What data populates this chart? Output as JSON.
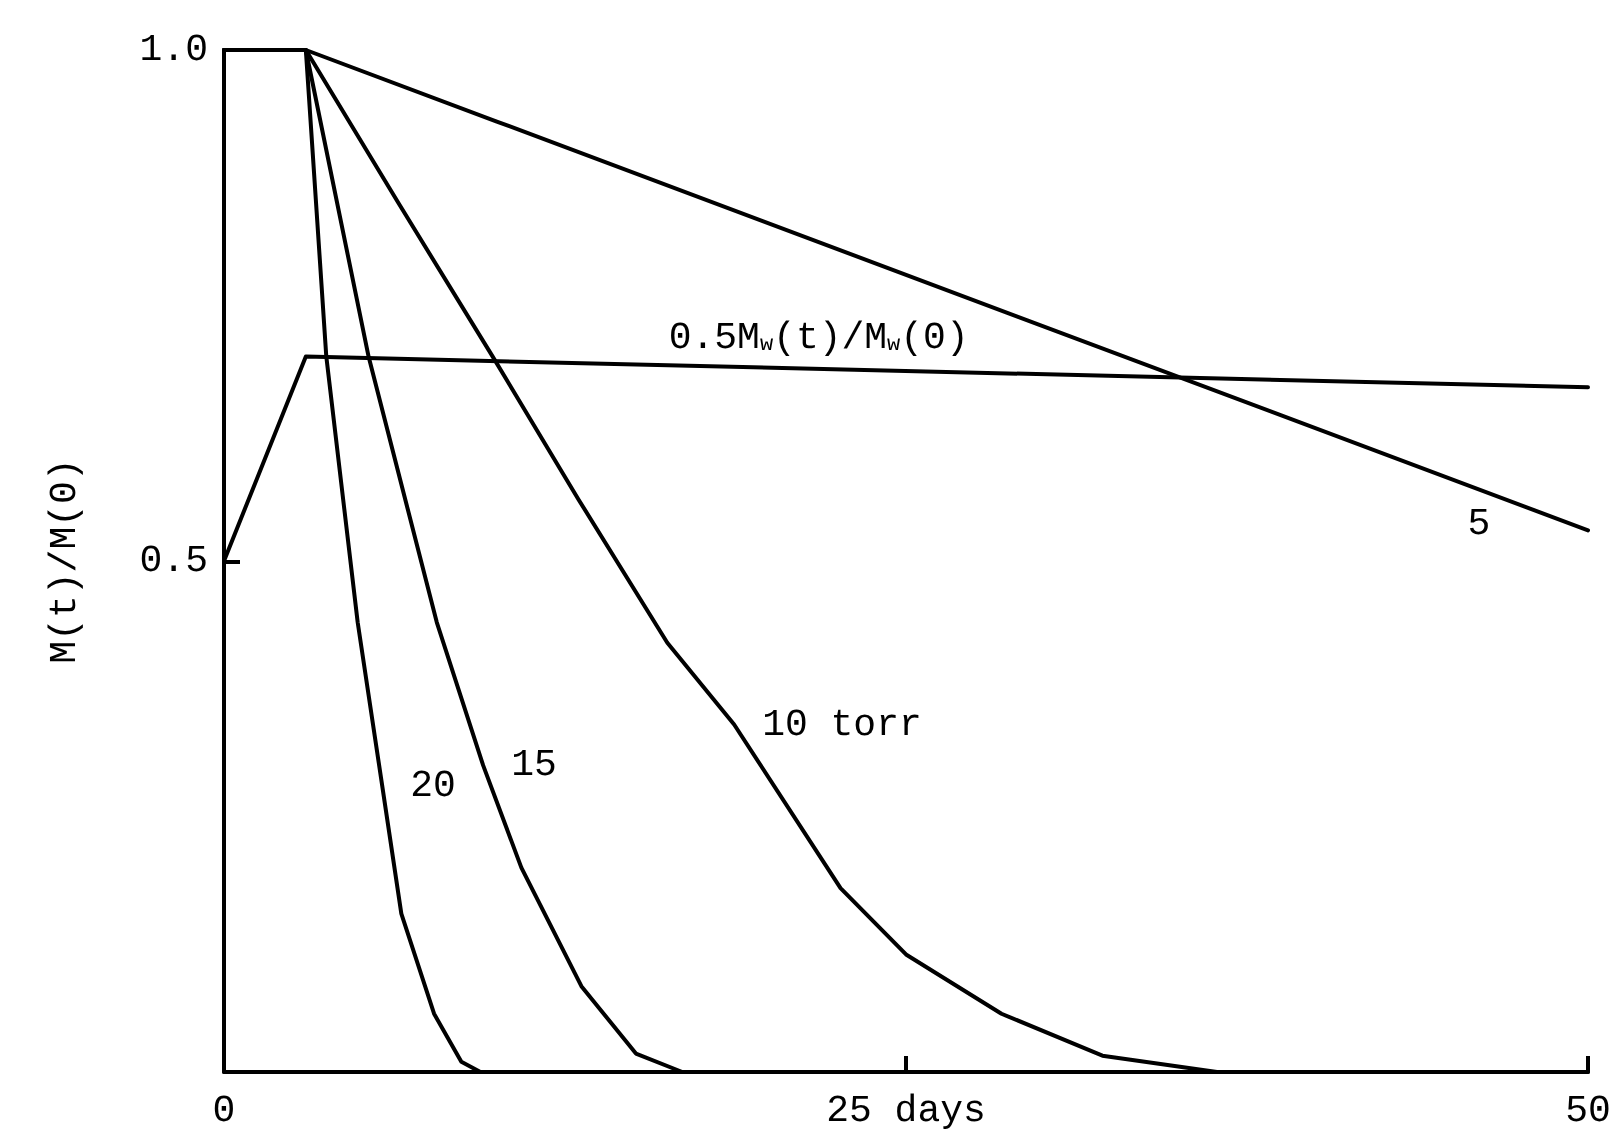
{
  "chart_data": {
    "type": "line",
    "ylabel": "M(t)/M(0)",
    "xlim": [
      0,
      50
    ],
    "xticks": [
      0,
      {
        "value": 25,
        "label": "25 days"
      },
      50
    ],
    "ylim": [
      0,
      1
    ],
    "yticks": [
      {
        "value": 0.5,
        "label": "0.5"
      },
      {
        "value": 1,
        "label": "1.0"
      }
    ],
    "grid": false,
    "marker": "none",
    "line_style": "solid",
    "series": [
      {
        "name": "5",
        "color": "#000000",
        "x": [
          0,
          3,
          10,
          50
        ],
        "values": [
          1,
          1,
          0.93,
          0.53
        ]
      },
      {
        "name": "10 torr",
        "color": "#000000",
        "x": [
          0,
          3,
          6.4,
          9.85,
          13,
          16.25,
          18.7,
          22.6,
          25,
          28.5,
          32.2,
          36.4,
          50
        ],
        "values": [
          1,
          1,
          0.85,
          0.7,
          0.56,
          0.42,
          0.34,
          0.18,
          0.115,
          0.057,
          0.016,
          0,
          0
        ]
      },
      {
        "name": "15",
        "color": "#000000",
        "x": [
          0,
          3,
          5.3,
          7.8,
          9.5,
          10.9,
          13.1,
          15.1,
          16.8
        ],
        "values": [
          1,
          1,
          0.7,
          0.44,
          0.3,
          0.2,
          0.084,
          0.018,
          0
        ]
      },
      {
        "name": "20",
        "color": "#000000",
        "x": [
          0,
          3,
          3.75,
          4.9,
          5.8,
          6.5,
          7.7,
          8.7,
          9.4
        ],
        "values": [
          1,
          1,
          0.7,
          0.44,
          0.28,
          0.155,
          0.057,
          0.01,
          0
        ]
      },
      {
        "name": "0.5M$_{w}$(t)/M$_{w}$(0)",
        "color": "#000000",
        "x": [
          0,
          3,
          50
        ],
        "values": [
          0.5,
          0.7,
          0.67
        ]
      }
    ]
  }
}
